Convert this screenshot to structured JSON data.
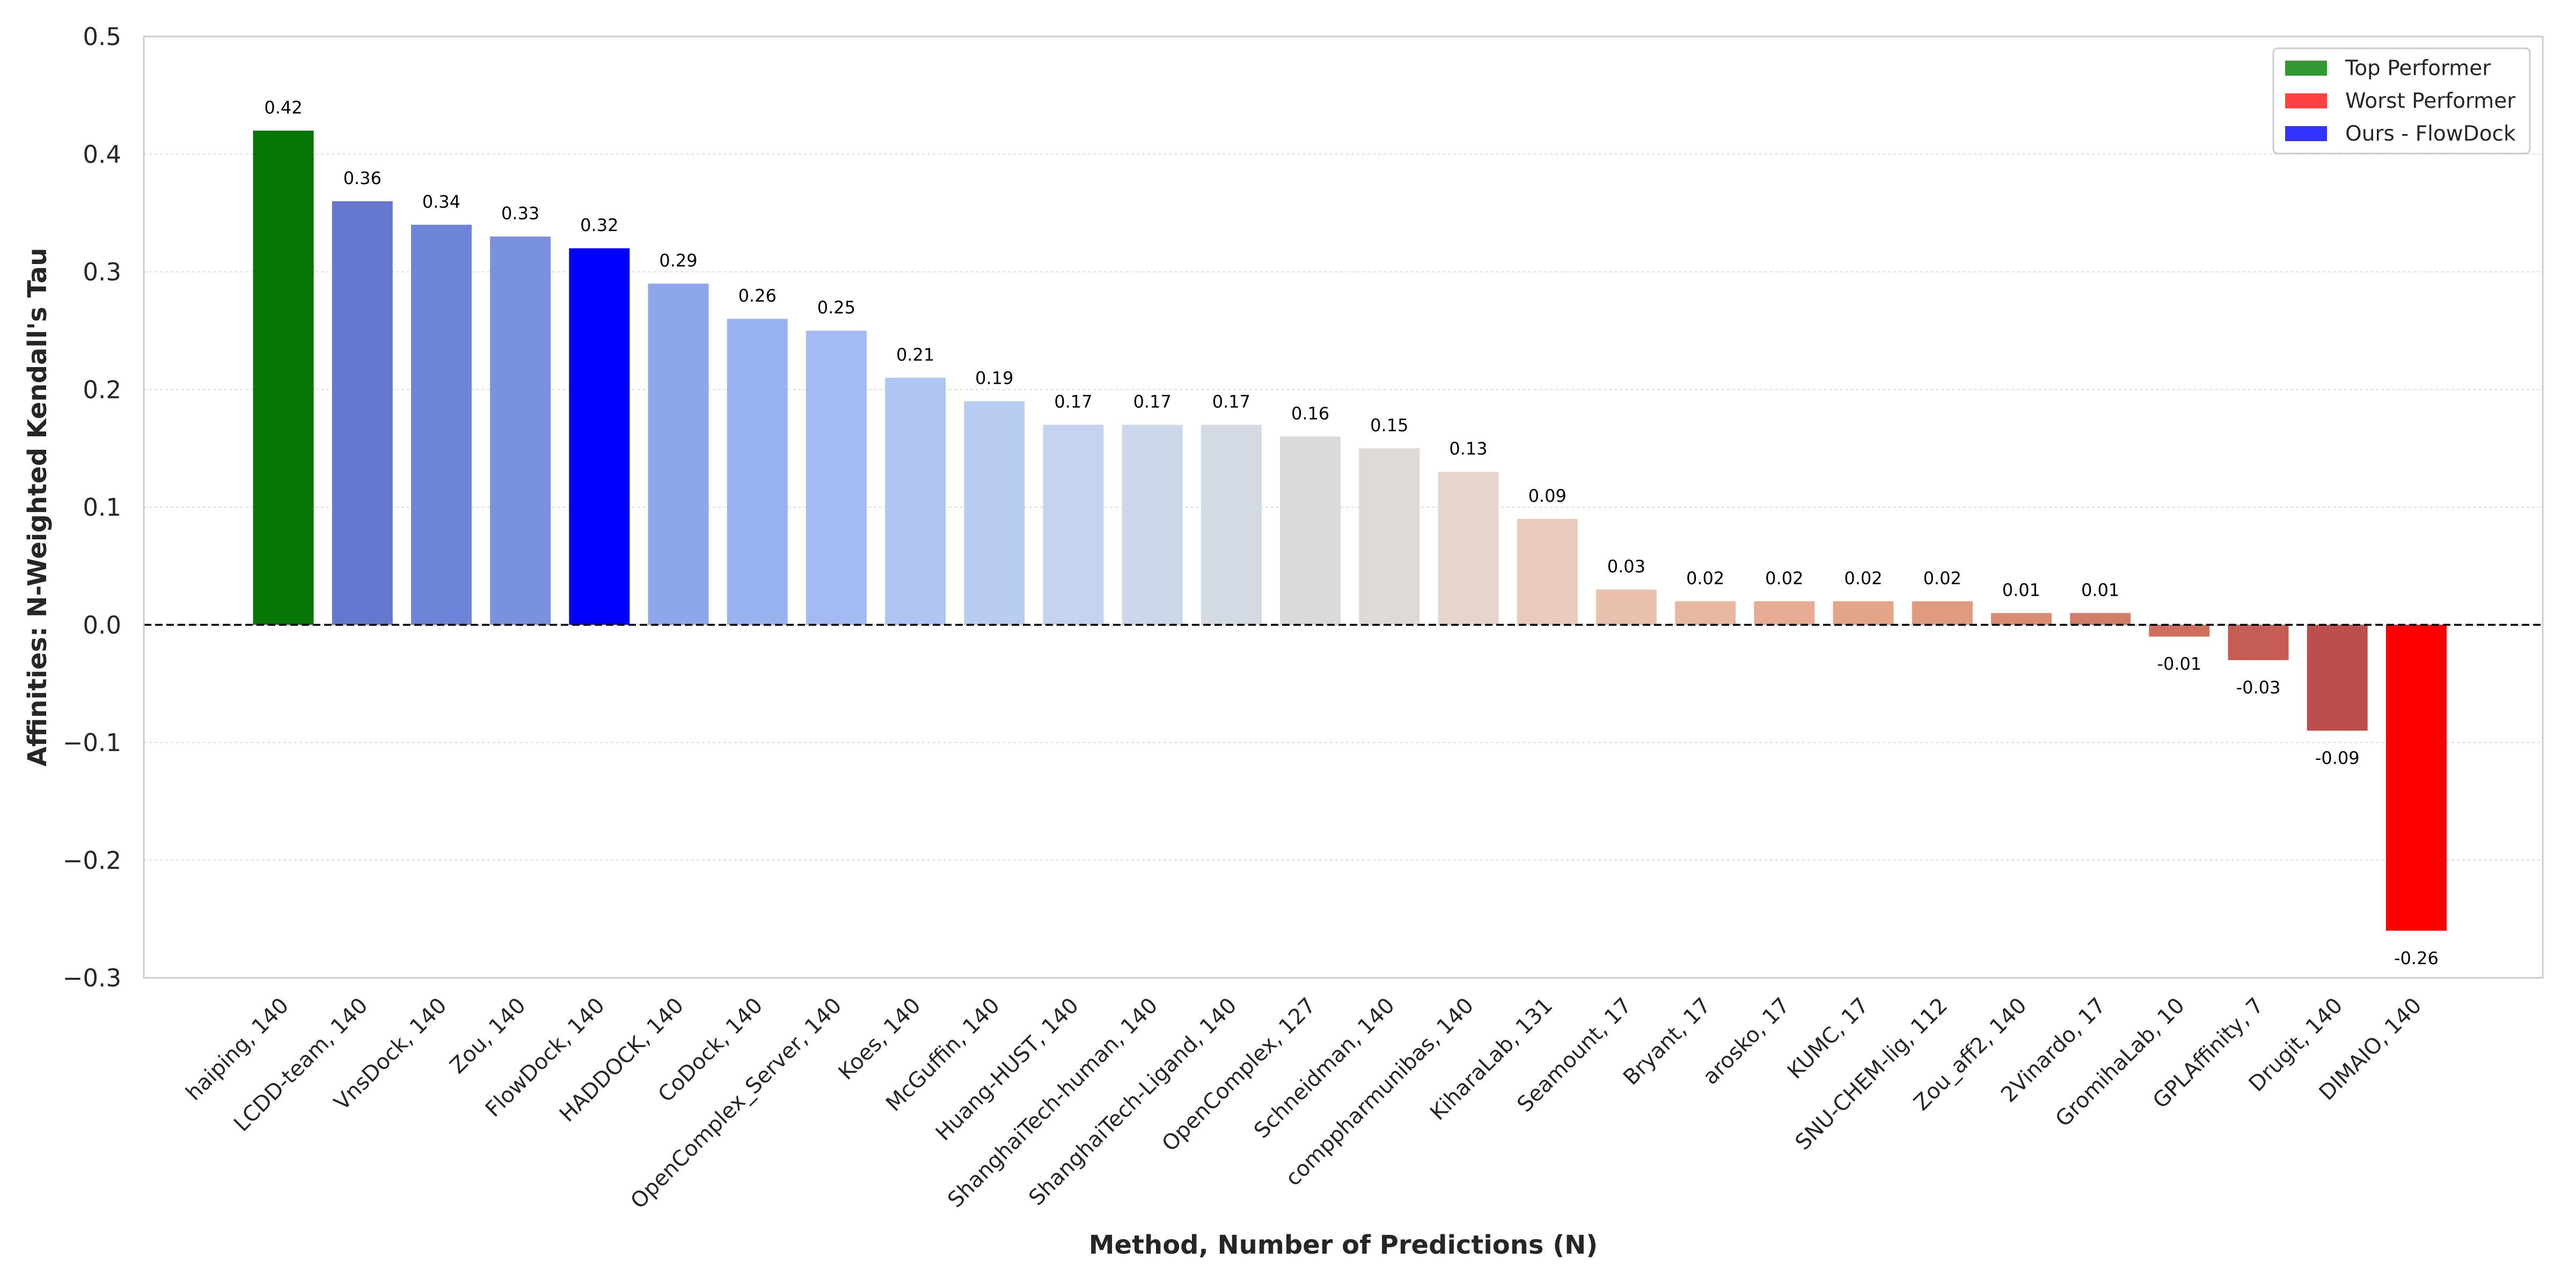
{
  "chart_data": {
    "type": "bar",
    "title": "",
    "xlabel": "Method, Number of Predictions (N)",
    "ylabel": "Affinities: N-Weighted Kendall's Tau",
    "ylim": [
      -0.3,
      0.5
    ],
    "yticks": [
      -0.3,
      -0.2,
      -0.1,
      0.0,
      0.1,
      0.2,
      0.3,
      0.4,
      0.5
    ],
    "ytick_labels": [
      "−0.3",
      "−0.2",
      "−0.1",
      "0.0",
      "0.1",
      "0.2",
      "0.3",
      "0.4",
      "0.5"
    ],
    "grid": "horizontal dotted",
    "reference_line": 0.0,
    "legend_position": "top-right",
    "categories": [
      "haiping, 140",
      "LCDD-team, 140",
      "VnsDock, 140",
      "Zou, 140",
      "FlowDock, 140",
      "HADDOCK, 140",
      "CoDock, 140",
      "OpenComplex_Server, 140",
      "Koes, 140",
      "McGuffin, 140",
      "Huang-HUST, 140",
      "ShanghaiTech-human, 140",
      "ShanghaiTech-Ligand, 140",
      "OpenComplex, 127",
      "Schneidman, 140",
      "comppharmunibas, 140",
      "KiharaLab, 131",
      "Seamount, 17",
      "Bryant, 17",
      "arosko, 17",
      "KUMC, 17",
      "SNU-CHEM-lig, 112",
      "Zou_aff2, 140",
      "2Vinardo, 17",
      "GromihaLab, 10",
      "GPLAffinity, 7",
      "Drugit, 140",
      "DIMAIO, 140"
    ],
    "values": [
      0.42,
      0.36,
      0.34,
      0.33,
      0.32,
      0.29,
      0.26,
      0.25,
      0.21,
      0.19,
      0.17,
      0.17,
      0.17,
      0.16,
      0.15,
      0.13,
      0.09,
      0.03,
      0.02,
      0.02,
      0.02,
      0.02,
      0.01,
      0.01,
      -0.01,
      -0.03,
      -0.09,
      -0.26
    ],
    "value_labels": [
      "0.42",
      "0.36",
      "0.34",
      "0.33",
      "0.32",
      "0.29",
      "0.26",
      "0.25",
      "0.21",
      "0.19",
      "0.17",
      "0.17",
      "0.17",
      "0.16",
      "0.15",
      "0.13",
      "0.09",
      "0.03",
      "0.02",
      "0.02",
      "0.02",
      "0.02",
      "0.01",
      "0.01",
      "-0.01",
      "-0.03",
      "-0.09",
      "-0.26"
    ],
    "bar_colors": [
      "#067706",
      "#6577ce",
      "#6d84d9",
      "#7a91e0",
      "#0000ff",
      "#8ea6ea",
      "#98b1ef",
      "#a3baf2",
      "#afc6f5",
      "#b9cdf3",
      "#c3d3f0",
      "#ccd7ea",
      "#d3dae3",
      "#d9dadb",
      "#dfdad6",
      "#e5d5cc",
      "#e8cbbd",
      "#eac1ae",
      "#e9b8a1",
      "#e6ac94",
      "#e4a488",
      "#e09a7e",
      "#da8b70",
      "#d27e66",
      "#cf6f5e",
      "#c65d54",
      "#bc4f4d",
      "#ff0000"
    ],
    "legend": [
      {
        "label": "Top Performer",
        "color": "#339a33"
      },
      {
        "label": "Worst Performer",
        "color": "#ff4040"
      },
      {
        "label": "Ours - FlowDock",
        "color": "#3333ff"
      }
    ]
  }
}
